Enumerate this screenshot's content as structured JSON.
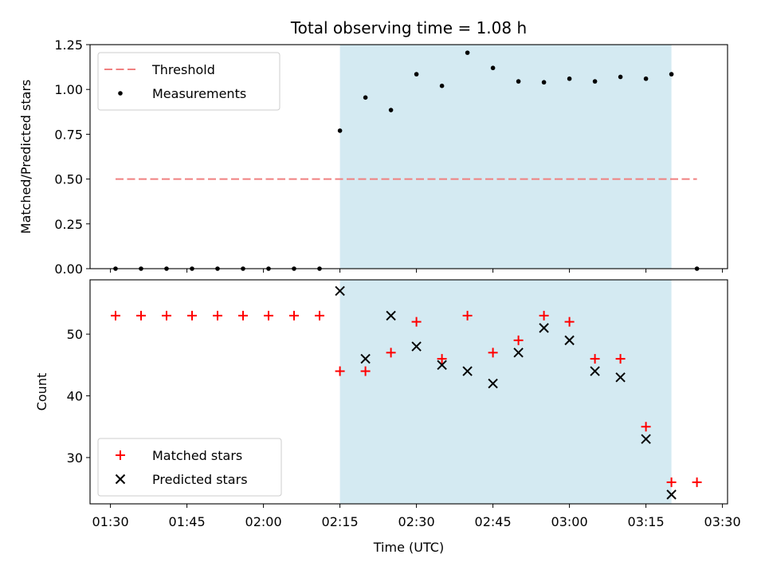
{
  "chart_data": {
    "type": "scatter",
    "title": "Total observing time = 1.08 h",
    "xlabel": "Time (UTC)",
    "x_tick_labels": [
      "01:30",
      "01:45",
      "02:00",
      "02:15",
      "02:30",
      "02:45",
      "03:00",
      "03:15",
      "03:30"
    ],
    "x_ticks": [
      "01:30",
      "01:45",
      "02:00",
      "02:15",
      "02:30",
      "02:45",
      "03:00",
      "03:15",
      "03:30"
    ],
    "xlim": [
      "01:26",
      "03:31"
    ],
    "highlight_interval": {
      "start": "02:15",
      "end": "03:20",
      "color": "#add8e6"
    },
    "times": [
      "01:31",
      "01:36",
      "01:41",
      "01:46",
      "01:51",
      "01:56",
      "02:01",
      "02:06",
      "02:11",
      "02:15",
      "02:20",
      "02:25",
      "02:30",
      "02:35",
      "02:40",
      "02:45",
      "02:50",
      "02:55",
      "03:00",
      "03:05",
      "03:10",
      "03:15",
      "03:20",
      "03:25"
    ],
    "panels": [
      {
        "ylabel": "Matched/Predicted stars",
        "ylim": [
          0,
          1.25
        ],
        "y_ticks": [
          0.0,
          0.25,
          0.5,
          0.75,
          1.0,
          1.25
        ],
        "y_tick_labels": [
          "0.00",
          "0.25",
          "0.50",
          "0.75",
          "1.00",
          "1.25"
        ],
        "legend_position": "top-left",
        "threshold": {
          "name": "Threshold",
          "value": 0.5,
          "x_start": "01:31",
          "x_end": "03:25",
          "color": "#f08080"
        },
        "series": [
          {
            "name": "Measurements",
            "marker": "dot",
            "color": "#000000",
            "values": [
              0,
              0,
              0,
              0,
              0,
              0,
              0,
              0,
              0,
              0.77,
              0.955,
              0.885,
              1.085,
              1.02,
              1.205,
              1.12,
              1.045,
              1.04,
              1.06,
              1.045,
              1.07,
              1.06,
              1.085,
              0
            ]
          }
        ]
      },
      {
        "ylabel": "Count",
        "ylim": [
          22.5,
          58.8
        ],
        "y_ticks": [
          30,
          40,
          50
        ],
        "y_tick_labels": [
          "30",
          "40",
          "50"
        ],
        "legend_position": "bottom-left",
        "series": [
          {
            "name": "Matched stars",
            "marker": "plus",
            "color": "#ff0000",
            "values": [
              53,
              53,
              53,
              53,
              53,
              53,
              53,
              53,
              53,
              44,
              44,
              47,
              52,
              46,
              53,
              47,
              49,
              53,
              52,
              46,
              46,
              35,
              26,
              26
            ]
          },
          {
            "name": "Predicted stars",
            "marker": "x",
            "color": "#000000",
            "values": [
              null,
              null,
              null,
              null,
              null,
              null,
              null,
              null,
              null,
              57,
              46,
              53,
              48,
              45,
              44,
              42,
              47,
              51,
              49,
              44,
              43,
              33,
              24,
              null
            ]
          }
        ]
      }
    ]
  }
}
